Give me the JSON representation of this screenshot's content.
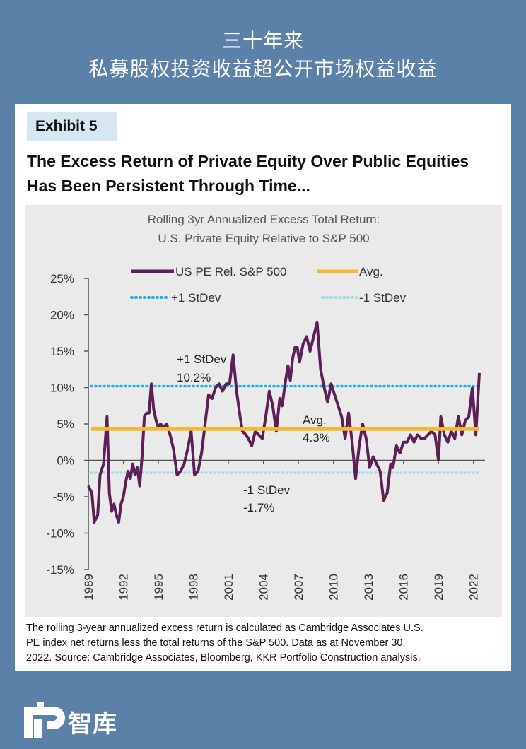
{
  "header": {
    "line1": "三十年来",
    "line2": "私募股权投资收益超公开市场权益收益"
  },
  "exhibit_label": "Exhibit 5",
  "title_line1": "The Excess Return of Private Equity Over Public Equities",
  "title_line2": "Has Been Persistent Through Time...",
  "footnote_lines": [
    "The rolling 3-year annualized excess return is calculated as Cambridge Associates U.S.",
    "PE index net returns less the total returns of the S&P 500. Data as at November 30,",
    "2022. Source: Cambridge Associates, Bloomberg, KKR Portfolio Construction analysis."
  ],
  "logo_text": "智库",
  "colors": {
    "background": "#5b81a8",
    "series": "#5c1f56",
    "avg": "#f7b731",
    "plus_sd": "#1bb3e6",
    "minus_sd": "#a6d9ee",
    "plot_bg": "#eaeaea",
    "exhibit_bg": "#d6e7f1"
  },
  "chart_data": {
    "type": "line",
    "title_line1": "Rolling 3yr Annualized Excess Total Return:",
    "title_line2": "U.S. Private Equity Relative to S&P 500",
    "xlabel": "",
    "ylabel": "",
    "ylim": [
      -15,
      25
    ],
    "xlim": [
      1989,
      2022.5
    ],
    "y_ticks": [
      25,
      20,
      15,
      10,
      5,
      0,
      -5,
      -10,
      -15
    ],
    "y_tick_labels": [
      "25%",
      "20%",
      "15%",
      "10%",
      "5%",
      "0%",
      "-5%",
      "-10%",
      "-15%"
    ],
    "x_ticks": [
      1989,
      1992,
      1995,
      1998,
      2001,
      2004,
      2007,
      2010,
      2013,
      2016,
      2019,
      2022
    ],
    "x_tick_labels": [
      "1989",
      "1992",
      "1995",
      "1998",
      "2001",
      "2004",
      "2007",
      "2010",
      "2013",
      "2016",
      "2019",
      "2022"
    ],
    "grid": false,
    "legend": [
      {
        "label": "US PE Rel. S&P 500",
        "style": "solid-thick"
      },
      {
        "label": "Avg.",
        "style": "solid"
      },
      {
        "label": "+1 StDev",
        "style": "dotted"
      },
      {
        "label": "-1 StDev",
        "style": "dotted"
      }
    ],
    "legend_placement": "top",
    "reference_lines": [
      {
        "name": "Avg.",
        "value": 4.3,
        "annotation_line1": "Avg.",
        "annotation_line2": "4.3%"
      },
      {
        "name": "+1 StDev",
        "value": 10.2,
        "annotation_line1": "+1 StDev",
        "annotation_line2": "10.2%"
      },
      {
        "name": "-1 StDev",
        "value": -1.7,
        "annotation_line1": "-1 StDev",
        "annotation_line2": "-1.7%"
      }
    ],
    "series": [
      {
        "name": "US PE Rel. S&P 500",
        "x": [
          1989.0,
          1989.3,
          1989.5,
          1989.8,
          1990.0,
          1990.3,
          1990.6,
          1990.8,
          1991.0,
          1991.2,
          1991.4,
          1991.6,
          1991.8,
          1992.0,
          1992.2,
          1992.4,
          1992.6,
          1992.8,
          1993.0,
          1993.2,
          1993.4,
          1993.6,
          1993.8,
          1994.0,
          1994.2,
          1994.4,
          1994.6,
          1994.8,
          1995.0,
          1995.2,
          1995.4,
          1995.7,
          1996.0,
          1996.3,
          1996.6,
          1996.9,
          1997.2,
          1997.5,
          1997.8,
          1998.1,
          1998.4,
          1998.7,
          1999.0,
          1999.3,
          1999.6,
          1999.9,
          2000.2,
          2000.5,
          2000.8,
          2001.1,
          2001.4,
          2001.7,
          2002.0,
          2002.2,
          2002.5,
          2002.7,
          2003.0,
          2003.3,
          2003.6,
          2003.9,
          2004.2,
          2004.5,
          2004.8,
          2005.1,
          2005.4,
          2005.6,
          2005.9,
          2006.1,
          2006.3,
          2006.5,
          2006.7,
          2006.9,
          2007.1,
          2007.4,
          2007.7,
          2008.0,
          2008.3,
          2008.6,
          2008.9,
          2009.2,
          2009.5,
          2009.8,
          2010.1,
          2010.4,
          2010.7,
          2011.0,
          2011.3,
          2011.6,
          2011.9,
          2012.2,
          2012.5,
          2012.8,
          2013.1,
          2013.4,
          2013.7,
          2014.0,
          2014.3,
          2014.6,
          2014.9,
          2015.1,
          2015.4,
          2015.7,
          2016.0,
          2016.3,
          2016.6,
          2016.9,
          2017.2,
          2017.5,
          2017.8,
          2018.1,
          2018.4,
          2018.7,
          2019.0,
          2019.2,
          2019.5,
          2019.8,
          2020.1,
          2020.4,
          2020.7,
          2021.0,
          2021.3,
          2021.6,
          2021.9,
          2022.2,
          2022.5
        ],
        "values": [
          -3.5,
          -4.5,
          -8.5,
          -7.5,
          -2.0,
          -0.5,
          6.0,
          -4.5,
          -7.0,
          -6.0,
          -7.5,
          -8.5,
          -6.0,
          -5.0,
          -3.0,
          -1.5,
          -2.5,
          -0.5,
          -2.0,
          -1.0,
          -3.5,
          0.5,
          6.0,
          6.5,
          6.5,
          10.5,
          7.0,
          5.5,
          4.5,
          5.0,
          4.5,
          5.0,
          3.5,
          1.5,
          -2.0,
          -1.5,
          -0.5,
          1.5,
          4.0,
          -2.0,
          -1.5,
          1.0,
          5.0,
          9.0,
          8.5,
          10.0,
          10.5,
          9.5,
          10.5,
          10.5,
          14.5,
          9.5,
          6.0,
          4.0,
          3.5,
          3.0,
          2.0,
          4.0,
          3.5,
          3.0,
          6.0,
          9.5,
          7.5,
          4.0,
          8.5,
          7.5,
          11.0,
          13.0,
          11.0,
          14.0,
          15.5,
          15.5,
          13.5,
          16.0,
          17.0,
          15.0,
          17.0,
          19.0,
          12.5,
          10.0,
          8.0,
          10.5,
          9.0,
          7.5,
          6.0,
          3.0,
          6.5,
          2.5,
          -2.5,
          2.0,
          5.0,
          3.0,
          -1.0,
          0.5,
          -0.5,
          -1.5,
          -5.5,
          -4.5,
          -0.5,
          -1.0,
          2.0,
          1.0,
          2.5,
          2.5,
          3.5,
          2.5,
          3.5,
          3.0,
          3.0,
          3.5,
          4.0,
          3.5,
          0.0,
          6.0,
          3.5,
          2.5,
          4.0,
          3.0,
          6.0,
          3.5,
          5.5,
          6.0,
          10.0,
          3.5,
          12.0
        ]
      }
    ]
  }
}
